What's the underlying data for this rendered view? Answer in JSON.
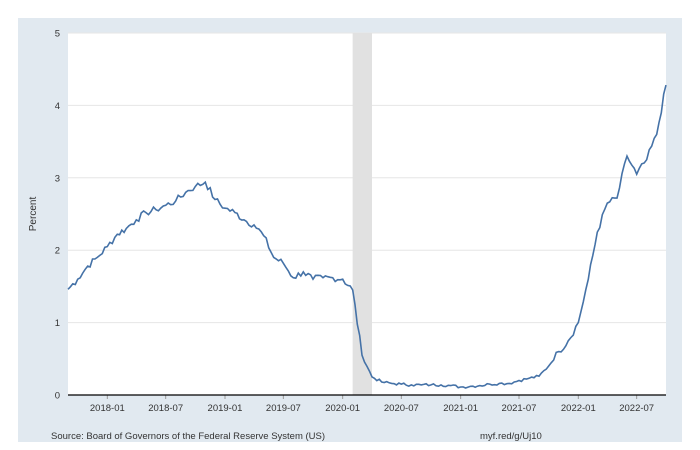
{
  "footer": {
    "source": "Source: Board of Governors of the Federal Reserve System (US)",
    "url": "myf.red/g/Uj10"
  },
  "colors": {
    "background_frame": "#e1e9f0",
    "plot_background": "#ffffff",
    "line": "#4572a7",
    "recession": "#e1e1e1",
    "grid": "#e6e6e6",
    "axis": "#000000",
    "text": "#333333"
  },
  "chart_data": {
    "type": "line",
    "title": "",
    "xlabel": "",
    "ylabel": "Percent",
    "ylim": [
      0,
      5
    ],
    "yticks": [
      0,
      1,
      2,
      3,
      4,
      5
    ],
    "xlim": [
      "2017-09-01",
      "2022-09-30"
    ],
    "xtick_labels": [
      "2018-01",
      "2018-07",
      "2019-01",
      "2019-07",
      "2020-01",
      "2020-07",
      "2021-01",
      "2021-07",
      "2022-01",
      "2022-07"
    ],
    "grid": true,
    "legend": "none",
    "recession_band": {
      "start": "2020-02-01",
      "end": "2020-04-01"
    },
    "series": [
      {
        "x": [
          "2017-09-01",
          "2017-10-01",
          "2017-11-01",
          "2017-12-01",
          "2018-01-01",
          "2018-02-01",
          "2018-03-01",
          "2018-04-01",
          "2018-05-01",
          "2018-06-01",
          "2018-07-01",
          "2018-08-01",
          "2018-09-01",
          "2018-10-01",
          "2018-11-01",
          "2018-12-01",
          "2019-01-01",
          "2019-02-01",
          "2019-03-01",
          "2019-04-01",
          "2019-05-01",
          "2019-06-01",
          "2019-07-01",
          "2019-08-01",
          "2019-09-01",
          "2019-10-01",
          "2019-11-01",
          "2019-12-01",
          "2020-01-01",
          "2020-02-01",
          "2020-03-01",
          "2020-04-01",
          "2020-05-01",
          "2020-06-01",
          "2020-07-01",
          "2020-08-01",
          "2020-09-01",
          "2020-10-01",
          "2020-11-01",
          "2020-12-01",
          "2021-01-01",
          "2021-02-01",
          "2021-03-01",
          "2021-04-01",
          "2021-05-01",
          "2021-06-01",
          "2021-07-01",
          "2021-08-01",
          "2021-09-01",
          "2021-10-01",
          "2021-11-01",
          "2021-12-01",
          "2022-01-01",
          "2022-02-01",
          "2022-03-01",
          "2022-04-01",
          "2022-05-01",
          "2022-06-01",
          "2022-07-01",
          "2022-08-01",
          "2022-09-01",
          "2022-09-30"
        ],
        "values": [
          1.46,
          1.6,
          1.78,
          1.9,
          2.05,
          2.22,
          2.3,
          2.42,
          2.52,
          2.56,
          2.62,
          2.68,
          2.8,
          2.88,
          2.94,
          2.7,
          2.58,
          2.52,
          2.42,
          2.35,
          2.2,
          1.9,
          1.82,
          1.62,
          1.7,
          1.6,
          1.62,
          1.62,
          1.6,
          1.45,
          0.55,
          0.25,
          0.18,
          0.16,
          0.15,
          0.14,
          0.14,
          0.14,
          0.14,
          0.13,
          0.11,
          0.12,
          0.13,
          0.15,
          0.16,
          0.16,
          0.2,
          0.23,
          0.26,
          0.4,
          0.6,
          0.75,
          1.0,
          1.6,
          2.25,
          2.65,
          2.72,
          3.3,
          3.05,
          3.25,
          3.6,
          4.28
        ]
      }
    ]
  }
}
